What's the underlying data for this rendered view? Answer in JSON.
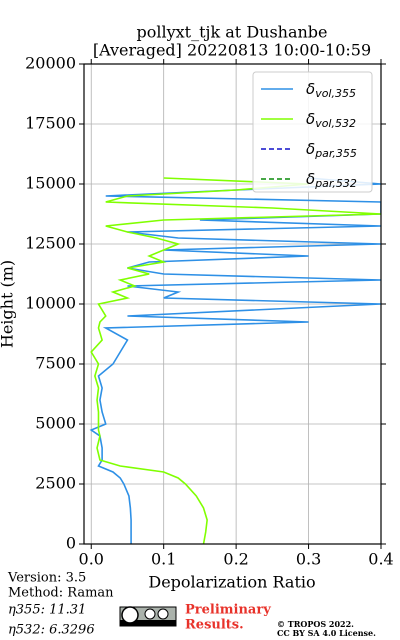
{
  "chart_data": {
    "type": "profile",
    "title": [
      "pollyxt_tjk at Dushanbe",
      "[Averaged] 20220813 10:00-10:59"
    ],
    "x_label": "Depolarization Ratio",
    "y_label": "Height (m)",
    "xlim": [
      -0.01,
      0.4
    ],
    "ylim": [
      0,
      20000
    ],
    "xticks": [
      {
        "value": 0,
        "label": "0.0"
      },
      0.1,
      0.2,
      0.3,
      0.4
    ],
    "yticks": [
      0,
      2500,
      5000,
      7500,
      10000,
      12500,
      15000,
      17500,
      20000
    ],
    "grid": true,
    "legend": "upper right",
    "heights": [
      0,
      500,
      1000,
      1500,
      2000,
      2500,
      2750,
      3000,
      3250,
      3500,
      4000,
      4500,
      4750,
      5000,
      5500,
      6000,
      6500,
      7000,
      7500,
      8000,
      8500,
      9000,
      9250,
      9500,
      10000,
      10250,
      10500,
      10750,
      11000,
      11250,
      11500,
      11750,
      12000,
      12250,
      12500,
      12750,
      13000,
      13250,
      13500,
      13750,
      14000,
      14250,
      14500,
      14750,
      15000,
      15250
    ],
    "series": [
      {
        "name": "δvol,355",
        "color": "#2e90e6",
        "dash": "solid",
        "values": [
          0.055,
          0.055,
          0.055,
          0.054,
          0.052,
          0.045,
          0.04,
          0.03,
          0.01,
          0.015,
          0.015,
          0.012,
          0.0,
          0.02,
          0.015,
          0.012,
          0.015,
          0.01,
          0.03,
          0.04,
          0.05,
          0.02,
          0.3,
          0.05,
          0.4,
          0.1,
          0.12,
          0.05,
          0.4,
          0.1,
          0.05,
          0.08,
          0.3,
          0.1,
          0.4,
          0.12,
          0.05,
          0.4,
          0.15,
          0.4,
          0.4,
          0.4,
          0.02,
          0.2,
          0.4,
          0.3
        ]
      },
      {
        "name": "δvol,532",
        "color": "#80ff00",
        "dash": "solid",
        "values": [
          0.155,
          0.158,
          0.16,
          0.155,
          0.145,
          0.13,
          0.12,
          0.1,
          0.04,
          0.012,
          0.008,
          0.012,
          0.01,
          0.01,
          0.01,
          0.008,
          0.01,
          0.005,
          0.01,
          0.0,
          0.015,
          0.01,
          0.012,
          0.02,
          0.01,
          0.05,
          0.03,
          0.06,
          0.04,
          0.08,
          0.05,
          0.1,
          0.08,
          0.1,
          0.12,
          0.09,
          0.05,
          0.02,
          0.1,
          0.4,
          0.25,
          0.02,
          0.05,
          0.2,
          0.3,
          0.1
        ]
      },
      {
        "name": "δpar,355",
        "color": "#1010c8",
        "dash": "dashed",
        "values": [
          null,
          null,
          null,
          null,
          null,
          null,
          null,
          null,
          null,
          null,
          null,
          null,
          null,
          null,
          null,
          null,
          null,
          null,
          null,
          null,
          null,
          null,
          null,
          null,
          null,
          null,
          null,
          null,
          null,
          null,
          null,
          null,
          null,
          null,
          null,
          null,
          null,
          null,
          null,
          null,
          null,
          null,
          null,
          null,
          null,
          null
        ]
      },
      {
        "name": "δpar,532",
        "color": "#0a8a0a",
        "dash": "dashed",
        "values": [
          null,
          null,
          null,
          null,
          null,
          null,
          null,
          null,
          null,
          null,
          null,
          null,
          null,
          null,
          null,
          null,
          null,
          null,
          null,
          null,
          null,
          null,
          null,
          null,
          null,
          null,
          null,
          null,
          null,
          null,
          null,
          null,
          null,
          null,
          null,
          null,
          null,
          null,
          null,
          null,
          null,
          null,
          null,
          null,
          null,
          null
        ]
      }
    ],
    "info": [
      "Version: 3.5",
      "Method: Raman",
      "η355:  11.31",
      "η532: 6.3296"
    ],
    "notice": [
      "Preliminary",
      "Results."
    ],
    "copyright": [
      "© TROPOS 2022.",
      "CC BY SA 4.0 License."
    ]
  }
}
